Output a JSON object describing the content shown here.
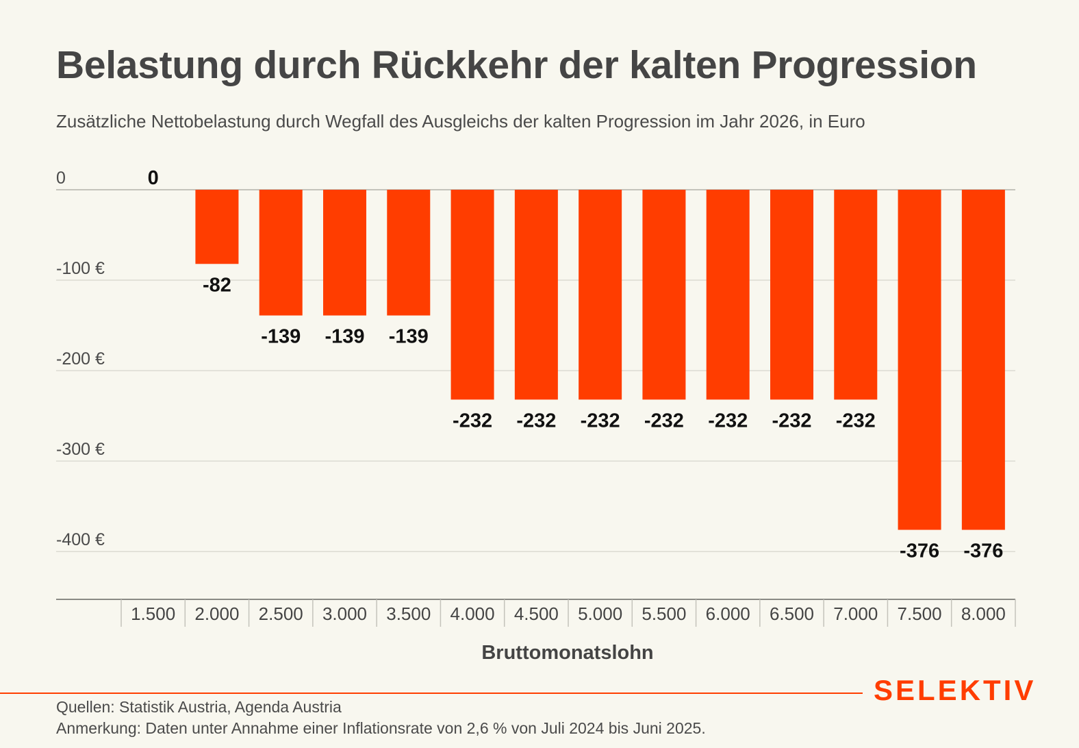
{
  "header": {
    "title": "Belastung durch Rückkehr der kalten Progression",
    "subtitle": "Zusätzliche Nettobelastung durch Wegfall des Ausgleichs der kalten Progression im Jahr 2026, in Euro"
  },
  "chart_data": {
    "type": "bar",
    "title": "Belastung durch Rückkehr der kalten Progression",
    "subtitle": "Zusätzliche Nettobelastung durch Wegfall des Ausgleichs der kalten Progression im Jahr 2026, in Euro",
    "xlabel": "Bruttomonatslohn",
    "ylabel": "",
    "categories": [
      "1.500",
      "2.000",
      "2.500",
      "3.000",
      "3.500",
      "4.000",
      "4.500",
      "5.000",
      "5.500",
      "6.000",
      "6.500",
      "7.000",
      "7.500",
      "8.000"
    ],
    "values": [
      0,
      -82,
      -139,
      -139,
      -139,
      -232,
      -232,
      -232,
      -232,
      -232,
      -232,
      -232,
      -376,
      -376
    ],
    "data_labels": [
      "0",
      "-82",
      "-139",
      "-139",
      "-139",
      "-232",
      "-232",
      "-232",
      "-232",
      "-232",
      "-232",
      "-232",
      "-376",
      "-376"
    ],
    "ylim": [
      -400,
      0
    ],
    "yticks": [
      0,
      -100,
      -200,
      -300,
      -400
    ],
    "ytick_labels": [
      "0",
      "-100 €",
      "-200 €",
      "-300 €",
      "-400 €"
    ],
    "grid": true,
    "legend": "none",
    "bar_color": "#ff3d00"
  },
  "footer": {
    "brand": "SELEKTIV",
    "brand_color": "#ff3d00",
    "source": "Quellen: Statistik Austria, Agenda Austria",
    "note": "Anmerkung: Daten unter Annahme einer Inflationsrate von 2,6 % von Juli 2024 bis Juni 2025."
  }
}
